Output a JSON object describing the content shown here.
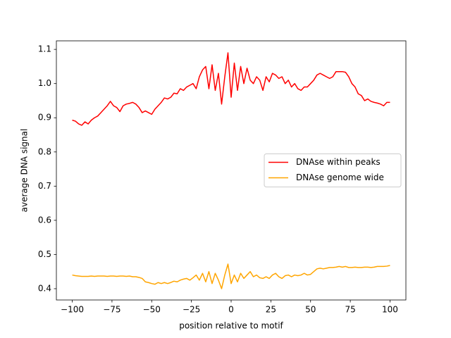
{
  "chart_data": {
    "type": "line",
    "xlabel": "position relative to motif",
    "ylabel": "average DNA signal",
    "x": [
      -100,
      -98,
      -96,
      -94,
      -92,
      -90,
      -88,
      -86,
      -84,
      -82,
      -80,
      -78,
      -76,
      -74,
      -72,
      -70,
      -68,
      -66,
      -64,
      -62,
      -60,
      -58,
      -56,
      -54,
      -52,
      -50,
      -48,
      -46,
      -44,
      -42,
      -40,
      -38,
      -36,
      -34,
      -32,
      -30,
      -28,
      -26,
      -24,
      -22,
      -20,
      -18,
      -16,
      -14,
      -12,
      -10,
      -8,
      -6,
      -4,
      -2,
      0,
      2,
      4,
      6,
      8,
      10,
      12,
      14,
      16,
      18,
      20,
      22,
      24,
      26,
      28,
      30,
      32,
      34,
      36,
      38,
      40,
      42,
      44,
      46,
      48,
      50,
      52,
      54,
      56,
      58,
      60,
      62,
      64,
      66,
      68,
      70,
      72,
      74,
      76,
      78,
      80,
      82,
      84,
      86,
      88,
      90,
      92,
      94,
      96,
      98,
      100
    ],
    "series": [
      {
        "name": "DNAse within peaks",
        "color": "#ff0000",
        "values": [
          0.893,
          0.89,
          0.882,
          0.878,
          0.888,
          0.882,
          0.893,
          0.9,
          0.905,
          0.915,
          0.925,
          0.935,
          0.948,
          0.935,
          0.93,
          0.918,
          0.935,
          0.94,
          0.942,
          0.945,
          0.94,
          0.93,
          0.915,
          0.92,
          0.915,
          0.91,
          0.925,
          0.935,
          0.945,
          0.958,
          0.955,
          0.96,
          0.972,
          0.97,
          0.985,
          0.98,
          0.99,
          0.995,
          1.0,
          0.985,
          1.02,
          1.04,
          1.05,
          0.985,
          1.055,
          0.98,
          1.03,
          0.94,
          1.02,
          1.09,
          0.96,
          1.06,
          0.98,
          1.05,
          1.0,
          1.045,
          1.01,
          1.0,
          1.02,
          1.01,
          0.98,
          1.02,
          1.005,
          1.03,
          1.025,
          1.015,
          1.02,
          1.0,
          1.01,
          0.99,
          1.0,
          0.985,
          0.98,
          0.99,
          0.99,
          1.0,
          1.01,
          1.025,
          1.03,
          1.025,
          1.02,
          1.015,
          1.02,
          1.035,
          1.035,
          1.035,
          1.033,
          1.02,
          1.0,
          0.99,
          0.97,
          0.965,
          0.95,
          0.955,
          0.948,
          0.945,
          0.943,
          0.94,
          0.935,
          0.945,
          0.945
        ]
      },
      {
        "name": "DNAse genome wide",
        "color": "#ffa500",
        "values": [
          0.44,
          0.438,
          0.437,
          0.436,
          0.436,
          0.436,
          0.437,
          0.436,
          0.437,
          0.437,
          0.437,
          0.436,
          0.437,
          0.437,
          0.436,
          0.437,
          0.437,
          0.436,
          0.437,
          0.435,
          0.435,
          0.433,
          0.43,
          0.42,
          0.418,
          0.415,
          0.413,
          0.418,
          0.415,
          0.418,
          0.415,
          0.418,
          0.422,
          0.42,
          0.425,
          0.428,
          0.43,
          0.425,
          0.432,
          0.44,
          0.425,
          0.445,
          0.42,
          0.45,
          0.415,
          0.445,
          0.425,
          0.4,
          0.44,
          0.472,
          0.415,
          0.44,
          0.42,
          0.445,
          0.43,
          0.44,
          0.45,
          0.435,
          0.44,
          0.432,
          0.43,
          0.435,
          0.43,
          0.44,
          0.445,
          0.435,
          0.43,
          0.438,
          0.44,
          0.435,
          0.44,
          0.438,
          0.44,
          0.445,
          0.44,
          0.442,
          0.45,
          0.458,
          0.46,
          0.458,
          0.46,
          0.462,
          0.462,
          0.463,
          0.465,
          0.463,
          0.465,
          0.462,
          0.462,
          0.463,
          0.462,
          0.462,
          0.463,
          0.463,
          0.462,
          0.463,
          0.465,
          0.465,
          0.465,
          0.466,
          0.468
        ]
      }
    ],
    "xlim": [
      -110,
      110
    ],
    "ylim": [
      0.367,
      1.125
    ],
    "xticks": [
      {
        "value": -100,
        "label": "−100"
      },
      {
        "value": -75,
        "label": "−75"
      },
      {
        "value": -50,
        "label": "−50"
      },
      {
        "value": -25,
        "label": "−25"
      },
      0,
      25,
      50,
      75,
      100
    ],
    "yticks": [
      0.4,
      0.5,
      0.6,
      0.7,
      0.8,
      0.9,
      {
        "value": 1,
        "label": "1.0"
      },
      1.1
    ],
    "legend": "center right",
    "grid": false
  }
}
